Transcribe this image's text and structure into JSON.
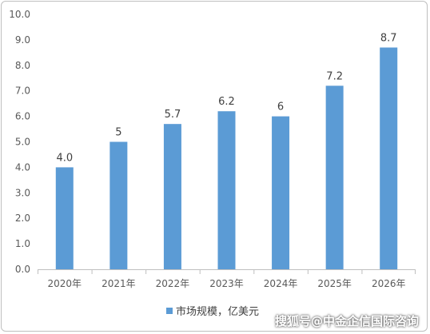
{
  "chart_data": {
    "type": "bar",
    "categories": [
      "2020年",
      "2021年",
      "2022年",
      "2023年",
      "2024年",
      "2025年",
      "2026年"
    ],
    "series": [
      {
        "name": "市场规模，亿美元",
        "values": [
          4.0,
          5,
          5.7,
          6.2,
          6,
          7.2,
          8.7
        ],
        "value_labels": [
          "4.0",
          "5",
          "5.7",
          "6.2",
          "6",
          "7.2",
          "8.7"
        ],
        "color": "#5b9bd5"
      }
    ],
    "ylim": [
      0,
      10
    ],
    "yticks": [
      "0.0",
      "1.0",
      "2.0",
      "3.0",
      "4.0",
      "5.0",
      "6.0",
      "7.0",
      "8.0",
      "9.0",
      "10.0"
    ],
    "grid": false,
    "legend": "bottom"
  },
  "watermark": "搜狐号@中金企信国际咨询"
}
